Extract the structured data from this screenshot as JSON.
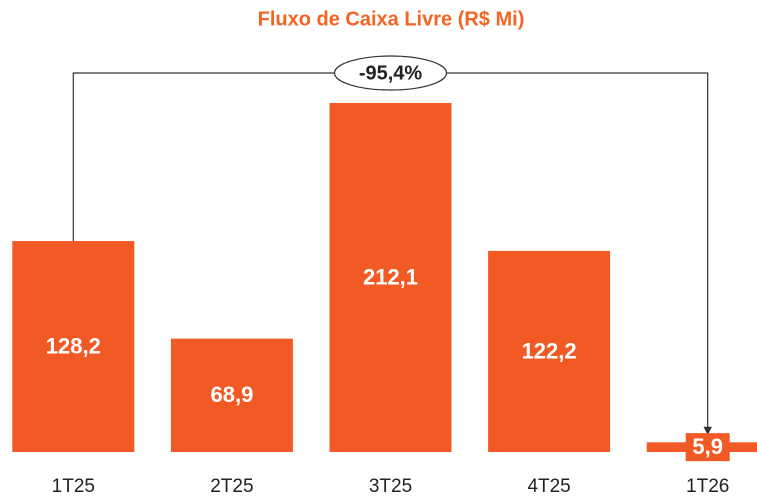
{
  "chart_data": {
    "type": "bar",
    "title": "Fluxo de Caixa Livre (R$ Mi)",
    "categories": [
      "1T25",
      "2T25",
      "3T25",
      "4T25",
      "1T26"
    ],
    "values": [
      128.2,
      68.9,
      212.1,
      122.2,
      5.9
    ],
    "value_labels": [
      "128,2",
      "68,9",
      "212,1",
      "122,2",
      "5,9"
    ],
    "color": "#f15a24",
    "annotation": "-95,4%"
  }
}
